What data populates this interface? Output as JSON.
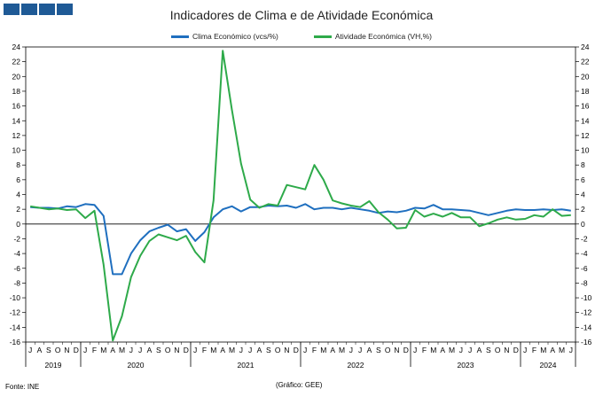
{
  "title": "Indicadores de Clima e de Atividade Económica",
  "source": "Fonte: INE",
  "credit": "(Gráfico: GEE)",
  "colors": {
    "clima": "#1f6fbf",
    "atividade": "#2eaa4a",
    "axis": "#000000",
    "grid": "#cfcfcf",
    "brand": "#1f5a96"
  },
  "chart_data": {
    "type": "line",
    "title": "Indicadores de Clima e de Atividade Económica",
    "ylim": [
      -16,
      24
    ],
    "yticks": [
      -16,
      -14,
      -12,
      -10,
      -8,
      -6,
      -4,
      -2,
      0,
      2,
      4,
      6,
      8,
      10,
      12,
      14,
      16,
      18,
      20,
      22,
      24
    ],
    "x": [
      "2019-07",
      "2019-08",
      "2019-09",
      "2019-10",
      "2019-11",
      "2019-12",
      "2020-01",
      "2020-02",
      "2020-03",
      "2020-04",
      "2020-05",
      "2020-06",
      "2020-07",
      "2020-08",
      "2020-09",
      "2020-10",
      "2020-11",
      "2020-12",
      "2021-01",
      "2021-02",
      "2021-03",
      "2021-04",
      "2021-05",
      "2021-06",
      "2021-07",
      "2021-08",
      "2021-09",
      "2021-10",
      "2021-11",
      "2021-12",
      "2022-01",
      "2022-02",
      "2022-03",
      "2022-04",
      "2022-05",
      "2022-06",
      "2022-07",
      "2022-08",
      "2022-09",
      "2022-10",
      "2022-11",
      "2022-12",
      "2023-01",
      "2023-02",
      "2023-03",
      "2023-04",
      "2023-05",
      "2023-06",
      "2023-07",
      "2023-08",
      "2023-09",
      "2023-10",
      "2023-11",
      "2023-12",
      "2024-01",
      "2024-02",
      "2024-03",
      "2024-04",
      "2024-05",
      "2024-06"
    ],
    "month_labels": [
      "J",
      "A",
      "S",
      "O",
      "N",
      "D",
      "J",
      "F",
      "M",
      "A",
      "M",
      "J",
      "J",
      "A",
      "S",
      "O",
      "N",
      "D",
      "J",
      "F",
      "M",
      "A",
      "M",
      "J",
      "J",
      "A",
      "S",
      "O",
      "N",
      "D",
      "J",
      "F",
      "M",
      "A",
      "M",
      "J",
      "J",
      "A",
      "S",
      "O",
      "N",
      "D",
      "J",
      "F",
      "M",
      "A",
      "M",
      "J",
      "J",
      "A",
      "S",
      "O",
      "N",
      "D",
      "J",
      "F",
      "M",
      "A",
      "M",
      "J"
    ],
    "year_labels": [
      {
        "label": "2019",
        "start": 0,
        "count": 6
      },
      {
        "label": "2020",
        "start": 6,
        "count": 12
      },
      {
        "label": "2021",
        "start": 18,
        "count": 12
      },
      {
        "label": "2022",
        "start": 30,
        "count": 12
      },
      {
        "label": "2023",
        "start": 42,
        "count": 12
      },
      {
        "label": "2024",
        "start": 54,
        "count": 6
      }
    ],
    "series": [
      {
        "name": "Clima Económico (vcs/%)",
        "values": [
          2.3,
          2.2,
          2.2,
          2.1,
          2.4,
          2.3,
          2.7,
          2.6,
          1.1,
          -6.8,
          -6.8,
          -4.0,
          -2.2,
          -1.0,
          -0.5,
          -0.1,
          -1.0,
          -0.7,
          -2.3,
          -1.1,
          0.9,
          2.0,
          2.4,
          1.7,
          2.3,
          2.3,
          2.5,
          2.4,
          2.5,
          2.2,
          2.7,
          2.0,
          2.2,
          2.2,
          2.0,
          2.2,
          2.0,
          1.8,
          1.5,
          1.7,
          1.6,
          1.8,
          2.2,
          2.1,
          2.6,
          2.0,
          2.0,
          1.9,
          1.8,
          1.5,
          1.2,
          1.5,
          1.8,
          2.0,
          1.9,
          1.9,
          2.0,
          1.9,
          2.0,
          1.8
        ]
      },
      {
        "name": "Atividade Económica (VH,%)",
        "values": [
          2.4,
          2.2,
          2.0,
          2.1,
          1.9,
          2.0,
          0.8,
          1.8,
          -5.5,
          -15.8,
          -12.5,
          -7.2,
          -4.3,
          -2.3,
          -1.4,
          -1.8,
          -2.2,
          -1.6,
          -3.8,
          -5.2,
          3.2,
          23.5,
          15.5,
          8.2,
          3.3,
          2.2,
          2.7,
          2.5,
          5.3,
          5.0,
          4.7,
          8.0,
          6.0,
          3.2,
          2.8,
          2.5,
          2.3,
          3.1,
          1.6,
          0.6,
          -0.6,
          -0.5,
          1.9,
          1.0,
          1.4,
          1.0,
          1.5,
          0.9,
          0.9,
          -0.3,
          0.1,
          0.6,
          0.9,
          0.6,
          0.7,
          1.2,
          1.0,
          2.0,
          1.1,
          1.2
        ]
      }
    ]
  }
}
